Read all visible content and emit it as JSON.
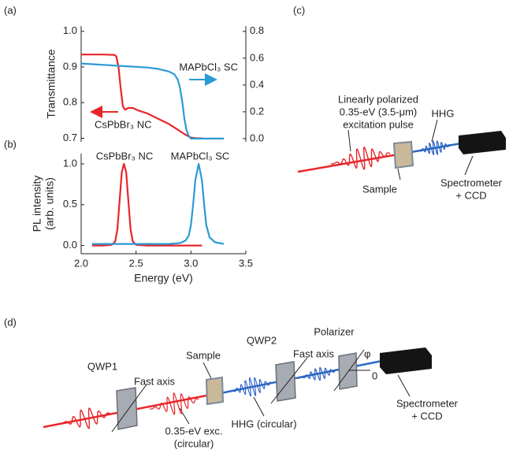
{
  "chart_data": [
    {
      "type": "line",
      "label": "(a)",
      "ylabel": "Transmittance",
      "xlim": [
        2.0,
        3.5
      ],
      "ylim": [
        0.69,
        1.015
      ],
      "y2lim": [
        -0.024,
        0.84
      ],
      "yticks": [
        0.7,
        0.8,
        0.9,
        {
          "value": 1,
          "label": "1.0"
        }
      ],
      "y2ticks": [
        {
          "value": 0,
          "label": "0.0"
        },
        0.2,
        0.4,
        0.6,
        0.8
      ],
      "annotations": [
        "CsPbBr₃ NC",
        "MAPbCl₃ SC"
      ],
      "series": [
        {
          "name": "CsPbBr₃ NC",
          "color": "#e8262a",
          "x": [
            2.0,
            2.1,
            2.2,
            2.3,
            2.32,
            2.34,
            2.36,
            2.38,
            2.4,
            2.43,
            2.47,
            2.52,
            2.6,
            2.7,
            2.8,
            2.9,
            2.95,
            3.0,
            3.05,
            3.1
          ],
          "values": [
            0.935,
            0.935,
            0.935,
            0.934,
            0.93,
            0.9,
            0.84,
            0.79,
            0.78,
            0.785,
            0.785,
            0.778,
            0.77,
            0.755,
            0.74,
            0.72,
            0.71,
            0.702,
            0.7,
            0.7
          ]
        },
        {
          "name": "MAPbCl₃ SC",
          "color": "#2b9ad6",
          "axis": "y2",
          "x": [
            2.0,
            2.2,
            2.4,
            2.6,
            2.7,
            2.8,
            2.85,
            2.88,
            2.9,
            2.92,
            2.94,
            2.96,
            2.98,
            3.0,
            3.05,
            3.15,
            3.3
          ],
          "values": [
            0.56,
            0.55,
            0.54,
            0.53,
            0.52,
            0.5,
            0.48,
            0.44,
            0.38,
            0.28,
            0.15,
            0.06,
            0.02,
            0.0,
            0.0,
            0.0,
            0.0
          ]
        }
      ]
    },
    {
      "type": "line",
      "label": "(b)",
      "ylabel": [
        "PL intensity",
        "(arb. units)"
      ],
      "xlabel": "Energy (eV)",
      "xlim": [
        2.0,
        3.5
      ],
      "ylim": [
        -0.1,
        1.125
      ],
      "xticks": [
        {
          "value": 2,
          "label": "2.0"
        },
        2.5,
        {
          "value": 3,
          "label": "3.0"
        },
        3.5
      ],
      "yticks": [
        {
          "value": 0,
          "label": "0.0"
        },
        0.5,
        {
          "value": 1,
          "label": "1.0"
        }
      ],
      "annotations": [
        "CsPbBr₃ NC",
        "MAPbCl₃ SC"
      ],
      "series": [
        {
          "name": "CsPbBr₃ NC",
          "color": "#e8262a",
          "x": [
            2.1,
            2.2,
            2.28,
            2.31,
            2.33,
            2.35,
            2.37,
            2.39,
            2.41,
            2.43,
            2.45,
            2.47,
            2.5,
            2.6,
            2.8,
            3.1
          ],
          "values": [
            0,
            0,
            0.01,
            0.05,
            0.2,
            0.55,
            0.9,
            1.0,
            0.9,
            0.55,
            0.2,
            0.05,
            0.01,
            0,
            0,
            0
          ]
        },
        {
          "name": "MAPbCl₃ SC",
          "color": "#2b9ad6",
          "x": [
            2.1,
            2.5,
            2.8,
            2.9,
            2.95,
            2.98,
            3.0,
            3.02,
            3.04,
            3.07,
            3.1,
            3.12,
            3.14,
            3.17,
            3.22,
            3.3
          ],
          "values": [
            0.02,
            0.02,
            0.02,
            0.03,
            0.06,
            0.12,
            0.25,
            0.5,
            0.8,
            1.0,
            0.8,
            0.5,
            0.25,
            0.1,
            0.04,
            0.02
          ]
        }
      ]
    }
  ],
  "diagram_c": {
    "label": "(c)",
    "pulse": [
      "Linearly polarized",
      "0.35-eV (3.5-μm)",
      "excitation pulse"
    ],
    "hhg": "HHG",
    "sample": "Sample",
    "detector": [
      "Spectrometer",
      "+ CCD"
    ]
  },
  "diagram_d": {
    "label": "(d)",
    "qwp1": "QWP1",
    "fast_axis_1": "Fast axis",
    "sample": "Sample",
    "qwp2": "QWP2",
    "fast_axis_2": "Fast axis",
    "polarizer": "Polarizer",
    "phi": "φ",
    "zero": "0",
    "hhg": "HHG (circular)",
    "excitation": [
      "0.35-eV exc.",
      "(circular)"
    ],
    "detector": [
      "Spectrometer",
      "+ CCD"
    ]
  }
}
